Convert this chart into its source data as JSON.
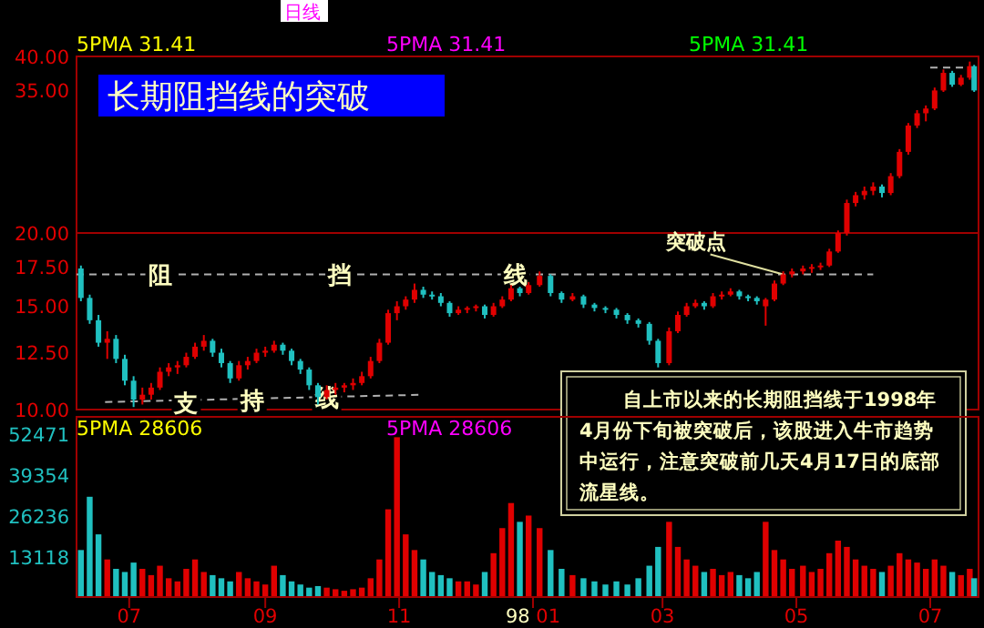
{
  "chart_data": [
    {
      "type": "candlestick",
      "title": "长期阻挡线的突破",
      "subtitle": "日线",
      "log": "y",
      "ylim": [
        10,
        40
      ],
      "yticks": [
        {
          "value": 10,
          "label": "10.00"
        },
        {
          "value": 12.5,
          "label": "12.50"
        },
        {
          "value": 15,
          "label": "15.00"
        },
        {
          "value": 17.5,
          "label": "17.50"
        },
        {
          "value": 20,
          "label": "20.00"
        },
        {
          "value": 35,
          "label": "35.00"
        },
        {
          "value": 40,
          "label": "40.00"
        }
      ],
      "xlim": [
        "1997-06-07",
        "1998-07-23"
      ],
      "tick_labels": "y",
      "colors": [
        "#20c0c0",
        "#20c0c0",
        "#20c0c0",
        "#e00000",
        "#20c0c0",
        "#20c0c0",
        "#20c0c0",
        "#e00000",
        "#e00000",
        "#e00000",
        "#e00000",
        "#e00000",
        "#e00000",
        "#e00000",
        "#e00000",
        "#20c0c0",
        "#20c0c0",
        "#20c0c0",
        "#e00000",
        "#e00000",
        "#e00000",
        "#e00000",
        "#e00000",
        "#20c0c0",
        "#20c0c0",
        "#20c0c0",
        "#20c0c0",
        "#20c0c0",
        "#e00000",
        "#e00000",
        "#e00000",
        "#e00000",
        "#e00000",
        "#e00000",
        "#e00000",
        "#e00000",
        "#e00000",
        "#e00000",
        "#e00000",
        "#20c0c0",
        "#20c0c0",
        "#20c0c0",
        "#20c0c0",
        "#e00000",
        "#e00000",
        "#e00000",
        "#20c0c0",
        "#e00000",
        "#e00000",
        "#e00000",
        "#20c0c0",
        "#e00000",
        "#e00000",
        "#20c0c0",
        "#20c0c0",
        "#e00000",
        "#20c0c0",
        "#20c0c0",
        "#20c0c0",
        "#20c0c0",
        "#20c0c0",
        "#20c0c0",
        "#20c0c0",
        "#20c0c0",
        "#e00000",
        "#e00000",
        "#e00000",
        "#e00000",
        "#20c0c0",
        "#e00000",
        "#e00000",
        "#e00000",
        "#20c0c0",
        "#20c0c0",
        "#20c0c0",
        "#e00000",
        "#e00000",
        "#e00000",
        "#e00000",
        "#e00000",
        "#e00000",
        "#e00000",
        "#e00000",
        "#e00000",
        "#e00000",
        "#e00000",
        "#e00000",
        "#e00000",
        "#20c0c0",
        "#e00000",
        "#e00000",
        "#e00000",
        "#e00000",
        "#e00000",
        "#e00000",
        "#e00000",
        "#20c0c0",
        "#e00000",
        "#e00000",
        "#20c0c0"
      ],
      "x": [
        "1997-06-09",
        "1997-06-13",
        "1997-06-17",
        "1997-06-21",
        "1997-06-25",
        "1997-06-29",
        "1997-07-03",
        "1997-07-07",
        "1997-07-11",
        "1997-07-15",
        "1997-07-19",
        "1997-07-23",
        "1997-07-27",
        "1997-07-31",
        "1997-08-04",
        "1997-08-08",
        "1997-08-12",
        "1997-08-16",
        "1997-08-20",
        "1997-08-24",
        "1997-08-28",
        "1997-09-01",
        "1997-09-05",
        "1997-09-09",
        "1997-09-13",
        "1997-09-17",
        "1997-09-21",
        "1997-09-25",
        "1997-09-29",
        "1997-10-03",
        "1997-10-07",
        "1997-10-11",
        "1997-10-15",
        "1997-10-19",
        "1997-10-23",
        "1997-10-27",
        "1997-10-31",
        "1997-11-04",
        "1997-11-08",
        "1997-11-12",
        "1997-11-16",
        "1997-11-20",
        "1997-11-24",
        "1997-11-28",
        "1997-12-02",
        "1997-12-06",
        "1997-12-10",
        "1997-12-14",
        "1997-12-18",
        "1997-12-22",
        "1997-12-26",
        "1997-12-30",
        "1998-01-04",
        "1998-01-09",
        "1998-01-14",
        "1998-01-19",
        "1998-01-24",
        "1998-01-29",
        "1998-02-03",
        "1998-02-08",
        "1998-02-13",
        "1998-02-18",
        "1998-02-23",
        "1998-02-27",
        "1998-03-04",
        "1998-03-08",
        "1998-03-12",
        "1998-03-16",
        "1998-03-20",
        "1998-03-24",
        "1998-03-28",
        "1998-04-01",
        "1998-04-05",
        "1998-04-09",
        "1998-04-13",
        "1998-04-17",
        "1998-04-21",
        "1998-04-25",
        "1998-04-29",
        "1998-05-04",
        "1998-05-08",
        "1998-05-12",
        "1998-05-16",
        "1998-05-20",
        "1998-05-24",
        "1998-05-28",
        "1998-06-01",
        "1998-06-05",
        "1998-06-09",
        "1998-06-13",
        "1998-06-17",
        "1998-06-21",
        "1998-06-25",
        "1998-06-29",
        "1998-07-03",
        "1998-07-07",
        "1998-07-11",
        "1998-07-15",
        "1998-07-19",
        "1998-07-21"
      ],
      "ohlc": [
        [
          17.4,
          17.6,
          15.3,
          15.5
        ],
        [
          15.5,
          15.7,
          14.0,
          14.2
        ],
        [
          14.2,
          14.5,
          12.8,
          13.0
        ],
        [
          13.0,
          13.6,
          12.2,
          13.2
        ],
        [
          13.2,
          13.4,
          12.0,
          12.2
        ],
        [
          12.2,
          12.4,
          11.0,
          11.2
        ],
        [
          11.2,
          11.4,
          10.1,
          10.4
        ],
        [
          10.4,
          10.9,
          10.2,
          10.6
        ],
        [
          10.6,
          11.1,
          10.4,
          10.9
        ],
        [
          10.9,
          11.8,
          10.8,
          11.6
        ],
        [
          11.6,
          12.0,
          11.4,
          11.8
        ],
        [
          11.8,
          12.1,
          11.5,
          11.9
        ],
        [
          11.9,
          12.5,
          11.8,
          12.3
        ],
        [
          12.3,
          13.0,
          12.2,
          12.8
        ],
        [
          12.8,
          13.4,
          12.6,
          13.1
        ],
        [
          13.1,
          13.2,
          12.3,
          12.5
        ],
        [
          12.5,
          12.7,
          11.8,
          12.0
        ],
        [
          12.0,
          12.1,
          11.1,
          11.3
        ],
        [
          11.3,
          12.1,
          11.2,
          11.9
        ],
        [
          11.9,
          12.3,
          11.7,
          12.1
        ],
        [
          12.1,
          12.7,
          12.0,
          12.5
        ],
        [
          12.5,
          12.8,
          12.3,
          12.6
        ],
        [
          12.6,
          13.1,
          12.5,
          12.9
        ],
        [
          12.9,
          13.0,
          12.4,
          12.6
        ],
        [
          12.6,
          12.7,
          11.9,
          12.1
        ],
        [
          12.1,
          12.2,
          11.5,
          11.7
        ],
        [
          11.7,
          11.8,
          10.8,
          11.0
        ],
        [
          11.0,
          11.1,
          10.2,
          10.5
        ],
        [
          10.5,
          11.0,
          10.4,
          10.8
        ],
        [
          10.8,
          11.1,
          10.6,
          10.9
        ],
        [
          10.9,
          11.1,
          10.7,
          11.0
        ],
        [
          11.0,
          11.3,
          10.8,
          11.1
        ],
        [
          11.1,
          11.6,
          11.0,
          11.4
        ],
        [
          11.4,
          12.3,
          11.3,
          12.1
        ],
        [
          12.1,
          13.2,
          12.0,
          13.0
        ],
        [
          13.0,
          14.8,
          12.9,
          14.6
        ],
        [
          14.6,
          15.3,
          14.2,
          15.0
        ],
        [
          15.0,
          15.6,
          14.8,
          15.4
        ],
        [
          15.4,
          16.4,
          15.2,
          16.0
        ],
        [
          16.0,
          16.2,
          15.5,
          15.7
        ],
        [
          15.7,
          15.9,
          15.4,
          15.6
        ],
        [
          15.6,
          15.8,
          15.0,
          15.2
        ],
        [
          15.2,
          15.3,
          14.4,
          14.6
        ],
        [
          14.6,
          15.0,
          14.5,
          14.8
        ],
        [
          14.8,
          15.0,
          14.6,
          14.9
        ],
        [
          14.9,
          15.1,
          14.7,
          15.0
        ],
        [
          15.0,
          15.1,
          14.3,
          14.5
        ],
        [
          14.5,
          15.2,
          14.4,
          15.0
        ],
        [
          15.0,
          15.6,
          14.9,
          15.4
        ],
        [
          15.4,
          16.3,
          15.3,
          16.1
        ],
        [
          16.1,
          16.2,
          15.6,
          15.8
        ],
        [
          15.8,
          16.5,
          15.7,
          16.3
        ],
        [
          16.3,
          17.2,
          16.2,
          16.9
        ],
        [
          16.9,
          17.0,
          15.6,
          15.8
        ],
        [
          15.8,
          15.9,
          15.2,
          15.4
        ],
        [
          15.4,
          15.8,
          15.3,
          15.6
        ],
        [
          15.6,
          15.7,
          14.9,
          15.1
        ],
        [
          15.1,
          15.2,
          14.7,
          14.9
        ],
        [
          14.9,
          15.0,
          14.6,
          14.8
        ],
        [
          14.8,
          14.9,
          14.3,
          14.5
        ],
        [
          14.5,
          14.6,
          14.0,
          14.2
        ],
        [
          14.2,
          14.3,
          13.8,
          14.0
        ],
        [
          14.0,
          14.1,
          12.9,
          13.1
        ],
        [
          13.1,
          13.2,
          11.8,
          12.0
        ],
        [
          12.0,
          13.8,
          11.9,
          13.6
        ],
        [
          13.6,
          14.7,
          13.5,
          14.5
        ],
        [
          14.5,
          15.2,
          14.4,
          15.0
        ],
        [
          15.0,
          15.4,
          14.9,
          15.2
        ],
        [
          15.2,
          15.3,
          14.8,
          15.0
        ],
        [
          15.0,
          15.8,
          14.9,
          15.6
        ],
        [
          15.6,
          15.9,
          15.4,
          15.7
        ],
        [
          15.7,
          16.1,
          15.6,
          15.9
        ],
        [
          15.9,
          16.0,
          15.4,
          15.6
        ],
        [
          15.6,
          15.7,
          15.3,
          15.5
        ],
        [
          15.5,
          15.6,
          15.1,
          15.3
        ],
        [
          15.0,
          15.5,
          13.9,
          15.4
        ],
        [
          15.4,
          16.6,
          15.3,
          16.4
        ],
        [
          16.4,
          17.2,
          16.3,
          17.0
        ],
        [
          17.0,
          17.4,
          16.8,
          17.2
        ],
        [
          17.2,
          17.6,
          17.0,
          17.4
        ],
        [
          17.4,
          17.7,
          17.1,
          17.5
        ],
        [
          17.5,
          17.8,
          17.3,
          17.6
        ],
        [
          17.6,
          18.8,
          17.5,
          18.6
        ],
        [
          18.6,
          20.2,
          18.5,
          20.0
        ],
        [
          20.0,
          22.8,
          19.8,
          22.5
        ],
        [
          22.5,
          23.5,
          22.2,
          23.2
        ],
        [
          23.2,
          24.0,
          22.8,
          23.6
        ],
        [
          23.6,
          24.4,
          23.2,
          24.0
        ],
        [
          24.0,
          24.2,
          23.0,
          23.4
        ],
        [
          23.4,
          25.3,
          23.2,
          25.0
        ],
        [
          25.0,
          27.8,
          24.8,
          27.5
        ],
        [
          27.5,
          30.8,
          27.2,
          30.5
        ],
        [
          30.5,
          32.4,
          30.2,
          32.0
        ],
        [
          32.0,
          33.0,
          31.0,
          32.6
        ],
        [
          32.6,
          35.4,
          32.4,
          35.0
        ],
        [
          35.0,
          38.0,
          34.8,
          37.5
        ],
        [
          37.5,
          37.8,
          35.5,
          35.8
        ],
        [
          35.8,
          37.2,
          35.6,
          36.8
        ],
        [
          36.8,
          39.2,
          36.5,
          38.5
        ],
        [
          38.5,
          38.7,
          34.8,
          35.0
        ]
      ],
      "series": [
        {
          "type": "line",
          "x": [
            "1997-06-07",
            "1998-06-05"
          ],
          "values": [
            17.0,
            17.0
          ],
          "color": "#b0b0b0",
          "line_style": "dashed"
        },
        {
          "type": "line",
          "x": [
            "1997-06-20",
            "1997-11-12"
          ],
          "values": [
            10.3,
            10.6
          ],
          "color": "#b0b0b0",
          "line_style": "dashed"
        },
        {
          "type": "line",
          "x": [
            "1998-07-01",
            "1998-07-21"
          ],
          "values": [
            38.3,
            38.3
          ],
          "color": "#b0b0b0",
          "line_style": "dashed"
        }
      ],
      "ref_lines": [
        {
          "axis": "y",
          "value": 20,
          "color": "#a00000"
        }
      ],
      "annotations": [
        "5PMA   31.41",
        "5PMA   31.41",
        "5PMA   31.41",
        "自上市以来的长期阻挡线于1998年4月份下旬被突破后，该股进入牛市趋势中运行，注意突破前几天4月17日的底部流星线。",
        {
          "text": "阻",
          "x": "1997-07-15",
          "y": 17.0
        },
        {
          "text": "挡",
          "x": "1997-10-05",
          "y": 17.0
        },
        {
          "text": "线",
          "x": "1997-12-24",
          "y": 17.0
        },
        {
          "text": "支",
          "x": "1997-07-27",
          "y": 10.3
        },
        {
          "text": "持",
          "x": "1997-08-26",
          "y": 10.4
        },
        {
          "text": "线",
          "x": "1997-09-29",
          "y": 10.5
        },
        {
          "text": "突破点",
          "x": "1998-04-25",
          "y": 17.0
        }
      ]
    },
    {
      "type": "bar",
      "xlim": [
        "1997-06-07",
        "1998-07-23"
      ],
      "ylim": [
        0,
        57500
      ],
      "yticks": [
        13118,
        26236,
        39354,
        52471
      ],
      "xticks": [
        {
          "value": "1997-07-01",
          "label": "07"
        },
        {
          "value": "1997-09-01",
          "label": "09"
        },
        {
          "value": "1997-11-01",
          "label": "11"
        },
        {
          "value": "1998-01-01",
          "label": "98 01"
        },
        {
          "value": "1998-03-01",
          "label": "03"
        },
        {
          "value": "1998-05-01",
          "label": "05"
        },
        {
          "value": "1998-07-01",
          "label": "07"
        }
      ],
      "x": [
        "1997-06-09",
        "1997-06-13",
        "1997-06-17",
        "1997-06-21",
        "1997-06-25",
        "1997-06-29",
        "1997-07-03",
        "1997-07-07",
        "1997-07-11",
        "1997-07-15",
        "1997-07-19",
        "1997-07-23",
        "1997-07-27",
        "1997-07-31",
        "1997-08-04",
        "1997-08-08",
        "1997-08-12",
        "1997-08-16",
        "1997-08-20",
        "1997-08-24",
        "1997-08-28",
        "1997-09-01",
        "1997-09-05",
        "1997-09-09",
        "1997-09-13",
        "1997-09-17",
        "1997-09-21",
        "1997-09-25",
        "1997-09-29",
        "1997-10-03",
        "1997-10-07",
        "1997-10-11",
        "1997-10-15",
        "1997-10-19",
        "1997-10-23",
        "1997-10-27",
        "1997-10-31",
        "1997-11-04",
        "1997-11-08",
        "1997-11-12",
        "1997-11-16",
        "1997-11-20",
        "1997-11-24",
        "1997-11-28",
        "1997-12-02",
        "1997-12-06",
        "1997-12-10",
        "1997-12-14",
        "1997-12-18",
        "1997-12-22",
        "1997-12-26",
        "1997-12-30",
        "1998-01-04",
        "1998-01-09",
        "1998-01-14",
        "1998-01-19",
        "1998-01-24",
        "1998-01-29",
        "1998-02-03",
        "1998-02-08",
        "1998-02-13",
        "1998-02-18",
        "1998-02-23",
        "1998-02-27",
        "1998-03-04",
        "1998-03-08",
        "1998-03-12",
        "1998-03-16",
        "1998-03-20",
        "1998-03-24",
        "1998-03-28",
        "1998-04-01",
        "1998-04-05",
        "1998-04-09",
        "1998-04-13",
        "1998-04-17",
        "1998-04-21",
        "1998-04-25",
        "1998-04-29",
        "1998-05-04",
        "1998-05-08",
        "1998-05-12",
        "1998-05-16",
        "1998-05-20",
        "1998-05-24",
        "1998-05-28",
        "1998-06-01",
        "1998-06-05",
        "1998-06-09",
        "1998-06-13",
        "1998-06-17",
        "1998-06-21",
        "1998-06-25",
        "1998-06-29",
        "1998-07-03",
        "1998-07-07",
        "1998-07-11",
        "1998-07-15",
        "1998-07-19",
        "1998-07-21"
      ],
      "values": [
        15000,
        32000,
        20000,
        12000,
        9000,
        8000,
        11000,
        9000,
        7000,
        10000,
        6000,
        5000,
        9000,
        12000,
        8000,
        7000,
        6000,
        5000,
        8000,
        6000,
        5000,
        4000,
        10000,
        7000,
        5000,
        4000,
        3000,
        3500,
        3000,
        2500,
        2000,
        2500,
        3000,
        6000,
        12000,
        28000,
        51000,
        20000,
        15000,
        12000,
        8000,
        7000,
        6000,
        5000,
        5000,
        4000,
        8000,
        14000,
        22000,
        30000,
        24000,
        26000,
        22000,
        15000,
        9000,
        7000,
        6000,
        5000,
        4000,
        5000,
        4000,
        6000,
        10000,
        16000,
        24000,
        16000,
        12000,
        10000,
        8000,
        9000,
        7000,
        8000,
        7000,
        6000,
        8000,
        24000,
        15000,
        12000,
        9000,
        10000,
        8000,
        9000,
        14000,
        18000,
        16000,
        12000,
        10000,
        9000,
        8000,
        10000,
        14000,
        12000,
        11000,
        9000,
        12000,
        10000,
        8000,
        7000,
        9000,
        6000
      ],
      "colors": [
        "#20c0c0",
        "#20c0c0",
        "#20c0c0",
        "#e00000",
        "#20c0c0",
        "#20c0c0",
        "#20c0c0",
        "#e00000",
        "#e00000",
        "#e00000",
        "#e00000",
        "#e00000",
        "#e00000",
        "#e00000",
        "#e00000",
        "#20c0c0",
        "#20c0c0",
        "#20c0c0",
        "#e00000",
        "#e00000",
        "#e00000",
        "#e00000",
        "#e00000",
        "#20c0c0",
        "#20c0c0",
        "#20c0c0",
        "#20c0c0",
        "#20c0c0",
        "#e00000",
        "#e00000",
        "#e00000",
        "#e00000",
        "#e00000",
        "#e00000",
        "#e00000",
        "#e00000",
        "#e00000",
        "#e00000",
        "#e00000",
        "#20c0c0",
        "#20c0c0",
        "#20c0c0",
        "#20c0c0",
        "#e00000",
        "#e00000",
        "#e00000",
        "#20c0c0",
        "#e00000",
        "#e00000",
        "#e00000",
        "#20c0c0",
        "#e00000",
        "#e00000",
        "#20c0c0",
        "#20c0c0",
        "#e00000",
        "#20c0c0",
        "#20c0c0",
        "#20c0c0",
        "#20c0c0",
        "#20c0c0",
        "#20c0c0",
        "#20c0c0",
        "#20c0c0",
        "#e00000",
        "#e00000",
        "#e00000",
        "#e00000",
        "#20c0c0",
        "#e00000",
        "#e00000",
        "#e00000",
        "#20c0c0",
        "#20c0c0",
        "#20c0c0",
        "#e00000",
        "#e00000",
        "#e00000",
        "#e00000",
        "#e00000",
        "#e00000",
        "#e00000",
        "#e00000",
        "#e00000",
        "#e00000",
        "#e00000",
        "#e00000",
        "#e00000",
        "#20c0c0",
        "#e00000",
        "#e00000",
        "#e00000",
        "#e00000",
        "#e00000",
        "#e00000",
        "#e00000",
        "#20c0c0",
        "#e00000",
        "#e00000",
        "#20c0c0"
      ],
      "annotations": [
        "5PMA   28606",
        "5PMA   28606"
      ]
    }
  ]
}
